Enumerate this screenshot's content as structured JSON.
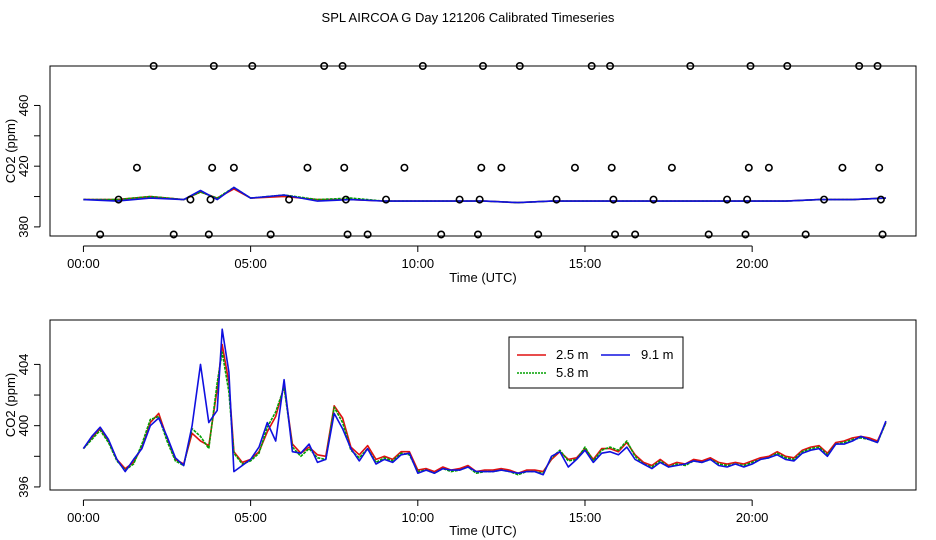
{
  "page": {
    "title": "SPL AIRCOA G  Day 121206  Calibrated Timeseries"
  },
  "colors": {
    "c25": "#e01010",
    "c58": "#00a000",
    "c91": "#1010e0",
    "axis": "#000000",
    "bg": "#ffffff"
  },
  "chart_data": [
    {
      "type": "scatter+line",
      "xlabel": "Time (UTC)",
      "ylabel": "CO2 (ppm)",
      "xlim": [
        -1.0,
        24.9
      ],
      "ylim": [
        374,
        486
      ],
      "xticks": [
        0,
        5,
        10,
        15,
        20
      ],
      "xtick_labels": [
        "00:00",
        "05:00",
        "10:00",
        "15:00",
        "20:00"
      ],
      "yticks": [
        380,
        420,
        460
      ],
      "ytick_labels": [
        "380",
        "420",
        "460"
      ],
      "calibration_points": {
        "x": [
          0.5,
          1.05,
          1.6,
          2.1,
          2.7,
          3.2,
          3.75,
          3.8,
          3.85,
          3.9,
          4.5,
          5.05,
          5.6,
          6.15,
          6.7,
          7.2,
          7.75,
          7.8,
          7.85,
          7.9,
          8.5,
          9.05,
          9.6,
          10.15,
          10.7,
          11.25,
          11.8,
          11.85,
          11.9,
          11.95,
          12.5,
          13.05,
          13.6,
          14.15,
          14.7,
          15.2,
          15.75,
          15.8,
          15.85,
          15.9,
          16.5,
          17.05,
          17.6,
          18.15,
          18.7,
          19.25,
          19.8,
          19.85,
          19.9,
          19.95,
          20.5,
          21.05,
          21.6,
          22.15,
          22.7,
          23.2,
          23.75,
          23.8,
          23.85,
          23.9
        ],
        "y": [
          375,
          398,
          419,
          486,
          375,
          398,
          375,
          398,
          419,
          486,
          419,
          486,
          375,
          398,
          419,
          486,
          486,
          419,
          398,
          375,
          375,
          398,
          419,
          486,
          375,
          398,
          375,
          398,
          419,
          486,
          419,
          486,
          375,
          398,
          419,
          486,
          486,
          419,
          398,
          375,
          375,
          398,
          419,
          486,
          375,
          398,
          375,
          398,
          419,
          486,
          419,
          486,
          375,
          398,
          419,
          486,
          486,
          419,
          398,
          375
        ]
      },
      "series": [
        {
          "name": "2.5 m",
          "x": [
            0,
            1,
            2,
            3,
            3.5,
            4,
            4.5,
            5,
            6,
            7,
            8,
            9,
            10,
            11,
            12,
            13,
            14,
            15,
            16,
            17,
            18,
            19,
            20,
            21,
            22,
            23,
            24
          ],
          "values": [
            398,
            398,
            400,
            398,
            403,
            399,
            405,
            399,
            400,
            398,
            398,
            397,
            397,
            397,
            397,
            396,
            397,
            397,
            397,
            397,
            397,
            397,
            397,
            397,
            398,
            398,
            399
          ]
        },
        {
          "name": "5.8 m",
          "x": [
            0,
            1,
            2,
            3,
            3.5,
            4,
            4.5,
            5,
            6,
            7,
            8,
            9,
            10,
            11,
            12,
            13,
            14,
            15,
            16,
            17,
            18,
            19,
            20,
            21,
            22,
            23,
            24
          ],
          "values": [
            398,
            398,
            400,
            398,
            403,
            399,
            406,
            399,
            401,
            398,
            399,
            397,
            397,
            397,
            397,
            396,
            397,
            397,
            397,
            397,
            397,
            397,
            397,
            397,
            398,
            398,
            399
          ]
        },
        {
          "name": "9.1 m",
          "x": [
            0,
            1,
            2,
            3,
            3.5,
            4,
            4.5,
            5,
            6,
            7,
            8,
            9,
            10,
            11,
            12,
            13,
            14,
            15,
            16,
            17,
            18,
            19,
            20,
            21,
            22,
            23,
            24
          ],
          "values": [
            398,
            397,
            399,
            398,
            404,
            398,
            406,
            399,
            401,
            397,
            398,
            397,
            397,
            397,
            397,
            396,
            397,
            397,
            397,
            397,
            397,
            397,
            397,
            397,
            398,
            398,
            399
          ]
        }
      ]
    },
    {
      "type": "line",
      "xlabel": "Time (UTC)",
      "ylabel": "CO2 (ppm)",
      "xlim": [
        -1.0,
        24.9
      ],
      "ylim": [
        395.8,
        406.9
      ],
      "xticks": [
        0,
        5,
        10,
        15,
        20
      ],
      "xtick_labels": [
        "00:00",
        "05:00",
        "10:00",
        "15:00",
        "20:00"
      ],
      "yticks": [
        396,
        400,
        404
      ],
      "ytick_labels": [
        "396",
        "400",
        "404"
      ],
      "legend": {
        "position": "top-center",
        "entries": [
          "2.5 m",
          "5.8 m",
          "9.1 m"
        ]
      },
      "series": [
        {
          "name": "2.5 m",
          "x": [
            0,
            0.25,
            0.5,
            0.75,
            1.0,
            1.25,
            1.5,
            1.75,
            2.0,
            2.25,
            2.5,
            2.75,
            3.0,
            3.25,
            3.5,
            3.75,
            4.0,
            4.15,
            4.35,
            4.5,
            4.75,
            5.0,
            5.25,
            5.5,
            5.75,
            6.0,
            6.25,
            6.5,
            6.75,
            7.0,
            7.25,
            7.5,
            7.75,
            8.0,
            8.25,
            8.5,
            8.75,
            9.0,
            9.25,
            9.5,
            9.75,
            10.0,
            10.25,
            10.5,
            10.75,
            11.0,
            11.25,
            11.5,
            11.75,
            12.0,
            12.25,
            12.5,
            12.75,
            13.0,
            13.25,
            13.5,
            13.75,
            14.0,
            14.25,
            14.5,
            14.75,
            15.0,
            15.25,
            15.5,
            15.75,
            16.0,
            16.25,
            16.5,
            16.75,
            17.0,
            17.25,
            17.5,
            17.75,
            18.0,
            18.25,
            18.5,
            18.75,
            19.0,
            19.25,
            19.5,
            19.75,
            20.0,
            20.25,
            20.5,
            20.75,
            21.0,
            21.25,
            21.5,
            21.75,
            22.0,
            22.25,
            22.5,
            22.75,
            23.0,
            23.25,
            23.5,
            23.75,
            24.0
          ],
          "values": [
            398.5,
            399.2,
            399.8,
            399.0,
            397.8,
            397.2,
            397.6,
            398.6,
            400.2,
            400.8,
            399.2,
            397.8,
            397.5,
            399.5,
            399.0,
            398.7,
            402.4,
            405.3,
            402.8,
            398.3,
            397.6,
            397.8,
            398.3,
            399.6,
            400.6,
            402.6,
            398.8,
            398.2,
            398.6,
            398.1,
            398.0,
            401.3,
            400.5,
            398.6,
            398.1,
            398.7,
            397.8,
            398.0,
            397.8,
            398.3,
            398.3,
            397.1,
            397.2,
            397.0,
            397.3,
            397.1,
            397.2,
            397.4,
            397.0,
            397.1,
            397.1,
            397.2,
            397.1,
            396.9,
            397.1,
            397.1,
            397.0,
            397.8,
            398.3,
            397.8,
            397.9,
            398.5,
            397.8,
            398.5,
            398.5,
            398.3,
            398.9,
            398.1,
            397.6,
            397.4,
            397.8,
            397.4,
            397.6,
            397.5,
            397.8,
            397.7,
            397.9,
            397.6,
            397.5,
            397.6,
            397.5,
            397.7,
            397.9,
            398.0,
            398.3,
            398.0,
            397.9,
            398.4,
            398.6,
            398.7,
            398.2,
            398.9,
            399.0,
            399.2,
            399.3,
            399.2,
            399.0,
            400.2
          ]
        },
        {
          "name": "5.8 m",
          "x": [
            0,
            0.25,
            0.5,
            0.75,
            1.0,
            1.25,
            1.5,
            1.75,
            2.0,
            2.25,
            2.5,
            2.75,
            3.0,
            3.25,
            3.5,
            3.75,
            4.0,
            4.15,
            4.35,
            4.5,
            4.75,
            5.0,
            5.25,
            5.5,
            5.75,
            6.0,
            6.25,
            6.5,
            6.75,
            7.0,
            7.25,
            7.5,
            7.75,
            8.0,
            8.25,
            8.5,
            8.75,
            9.0,
            9.25,
            9.5,
            9.75,
            10.0,
            10.25,
            10.5,
            10.75,
            11.0,
            11.25,
            11.5,
            11.75,
            12.0,
            12.25,
            12.5,
            12.75,
            13.0,
            13.25,
            13.5,
            13.75,
            14.0,
            14.25,
            14.5,
            14.75,
            15.0,
            15.25,
            15.5,
            15.75,
            16.0,
            16.25,
            16.5,
            16.75,
            17.0,
            17.25,
            17.5,
            17.75,
            18.0,
            18.25,
            18.5,
            18.75,
            19.0,
            19.25,
            19.5,
            19.75,
            20.0,
            20.25,
            20.5,
            20.75,
            21.0,
            21.25,
            21.5,
            21.75,
            22.0,
            22.25,
            22.5,
            22.75,
            23.0,
            23.25,
            23.5,
            23.75,
            24.0
          ],
          "values": [
            398.5,
            399.1,
            399.7,
            398.9,
            397.7,
            397.1,
            397.5,
            398.8,
            400.4,
            400.6,
            399.0,
            397.7,
            397.4,
            399.8,
            399.3,
            398.5,
            402.8,
            404.8,
            402.2,
            398.2,
            397.5,
            397.7,
            398.2,
            399.9,
            400.9,
            402.5,
            398.6,
            398.0,
            398.5,
            397.9,
            397.8,
            401.2,
            400.2,
            398.4,
            397.9,
            398.5,
            397.6,
            397.9,
            397.7,
            398.2,
            398.1,
            397.0,
            397.1,
            396.9,
            397.2,
            397.0,
            397.1,
            397.3,
            396.9,
            397.0,
            397.0,
            397.1,
            397.0,
            396.8,
            397.0,
            397.0,
            396.9,
            397.9,
            398.4,
            397.7,
            397.8,
            398.6,
            397.7,
            398.4,
            398.6,
            398.4,
            399.0,
            398.0,
            397.5,
            397.3,
            397.7,
            397.3,
            397.5,
            397.4,
            397.7,
            397.6,
            397.8,
            397.5,
            397.4,
            397.5,
            397.4,
            397.6,
            397.8,
            397.9,
            398.2,
            397.9,
            397.8,
            398.3,
            398.5,
            398.6,
            398.1,
            398.8,
            398.9,
            399.1,
            399.2,
            399.1,
            398.9,
            400.2
          ]
        },
        {
          "name": "9.1 m",
          "x": [
            0,
            0.25,
            0.5,
            0.75,
            1.0,
            1.25,
            1.5,
            1.75,
            2.0,
            2.25,
            2.5,
            2.75,
            3.0,
            3.25,
            3.5,
            3.75,
            4.0,
            4.15,
            4.35,
            4.5,
            4.75,
            5.0,
            5.25,
            5.5,
            5.75,
            6.0,
            6.25,
            6.5,
            6.75,
            7.0,
            7.25,
            7.5,
            7.75,
            8.0,
            8.25,
            8.5,
            8.75,
            9.0,
            9.25,
            9.5,
            9.75,
            10.0,
            10.25,
            10.5,
            10.75,
            11.0,
            11.25,
            11.5,
            11.75,
            12.0,
            12.25,
            12.5,
            12.75,
            13.0,
            13.25,
            13.5,
            13.75,
            14.0,
            14.25,
            14.5,
            14.75,
            15.0,
            15.25,
            15.5,
            15.75,
            16.0,
            16.25,
            16.5,
            16.75,
            17.0,
            17.25,
            17.5,
            17.75,
            18.0,
            18.25,
            18.5,
            18.75,
            19.0,
            19.25,
            19.5,
            19.75,
            20.0,
            20.25,
            20.5,
            20.75,
            21.0,
            21.25,
            21.5,
            21.75,
            22.0,
            22.25,
            22.5,
            22.75,
            23.0,
            23.25,
            23.5,
            23.75,
            24.0
          ],
          "values": [
            398.5,
            399.3,
            399.9,
            399.1,
            397.8,
            397.0,
            397.8,
            398.5,
            400.0,
            400.5,
            399.3,
            397.9,
            397.4,
            400.0,
            404.0,
            400.2,
            401.0,
            406.3,
            403.5,
            397.0,
            397.4,
            397.8,
            398.6,
            400.2,
            399.0,
            403.0,
            398.3,
            398.2,
            398.8,
            397.6,
            397.8,
            400.8,
            399.8,
            398.5,
            397.7,
            398.5,
            397.5,
            397.8,
            397.6,
            398.1,
            398.2,
            396.9,
            397.1,
            396.9,
            397.2,
            397.1,
            397.1,
            397.3,
            397.0,
            397.0,
            397.0,
            397.1,
            397.0,
            396.9,
            397.0,
            397.0,
            396.8,
            398.0,
            398.3,
            397.3,
            397.8,
            398.4,
            397.6,
            398.2,
            398.3,
            398.1,
            398.6,
            397.8,
            397.5,
            397.2,
            397.6,
            397.3,
            397.4,
            397.5,
            397.7,
            397.6,
            397.8,
            397.4,
            397.3,
            397.5,
            397.3,
            397.5,
            397.8,
            397.9,
            398.1,
            397.8,
            397.7,
            398.2,
            398.4,
            398.5,
            398.0,
            398.8,
            398.8,
            399.0,
            399.3,
            399.1,
            398.9,
            400.3
          ]
        }
      ]
    }
  ]
}
